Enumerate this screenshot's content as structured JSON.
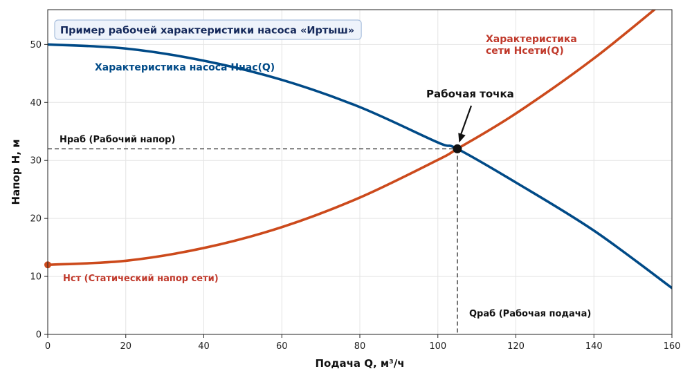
{
  "chart_data": {
    "type": "line",
    "title": "Пример рабочей характеристики насоса «Иртыш»",
    "xlabel": "Подача Q, м³/ч",
    "ylabel": "Напор H, м",
    "xlim": [
      0,
      160
    ],
    "ylim": [
      0,
      56
    ],
    "xticks": [
      0,
      20,
      40,
      60,
      80,
      100,
      120,
      140,
      160
    ],
    "yticks": [
      0,
      10,
      20,
      30,
      40,
      50
    ],
    "grid": true,
    "series": [
      {
        "name": "Характеристика насоса Hнас(Q)",
        "color": "#004a87",
        "x": [
          0,
          20,
          40,
          60,
          80,
          100,
          105,
          120,
          140,
          160
        ],
        "y": [
          50,
          49.3,
          47.2,
          43.9,
          39.2,
          33.1,
          32,
          26.2,
          17.9,
          8
        ]
      },
      {
        "name": "Характеристика сети Hсети(Q)",
        "color": "#cc4a1c",
        "x": [
          0,
          20,
          40,
          60,
          80,
          100,
          105,
          120,
          140,
          160
        ],
        "y": [
          12,
          12.7,
          14.9,
          18.5,
          23.6,
          30.1,
          32,
          38.1,
          47.6,
          58.5
        ]
      }
    ],
    "annotations": {
      "pump_label": "Характеристика насоса Hнас(Q)",
      "network_label_line1": "Характеристика",
      "network_label_line2": "сети Hсети(Q)",
      "operating_point_label": "Рабочая точка",
      "operating_point": [
        105,
        32
      ],
      "head_label": "Нраб (Рабочий напор)",
      "flow_label": "Qраб (Рабочая подача)",
      "static_label": "Нст (Статический напор сети)",
      "static_point": [
        0,
        12
      ]
    },
    "colors": {
      "pump": "#004a87",
      "network": "#cc4a1c",
      "network_text": "#c0392b",
      "title_bg": "#eef3fb",
      "title_border": "#a9bfdd",
      "title_text": "#14285a",
      "grid": "#e4e4e4"
    }
  }
}
